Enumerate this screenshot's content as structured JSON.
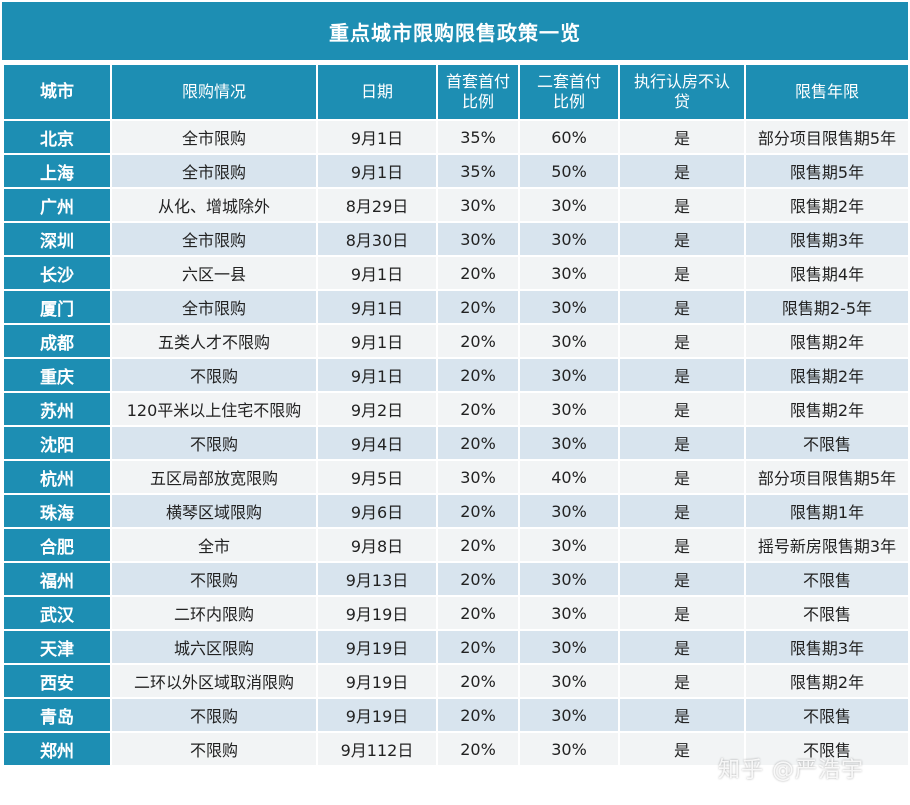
{
  "title": "重点城市限购限售政策一览",
  "headers": [
    "城市",
    "限购情况",
    "日期",
    "首套首付比例",
    "二套首付比例",
    "执行认房不认贷",
    "限售年限"
  ],
  "rows": [
    [
      "北京",
      "全市限购",
      "9月1日",
      "35%",
      "60%",
      "是",
      "部分项目限售期5年"
    ],
    [
      "上海",
      "全市限购",
      "9月1日",
      "35%",
      "50%",
      "是",
      "限售期5年"
    ],
    [
      "广州",
      "从化、增城除外",
      "8月29日",
      "30%",
      "30%",
      "是",
      "限售期2年"
    ],
    [
      "深圳",
      "全市限购",
      "8月30日",
      "30%",
      "30%",
      "是",
      "限售期3年"
    ],
    [
      "长沙",
      "六区一县",
      "9月1日",
      "20%",
      "30%",
      "是",
      "限售期4年"
    ],
    [
      "厦门",
      "全市限购",
      "9月1日",
      "20%",
      "30%",
      "是",
      "限售期2-5年"
    ],
    [
      "成都",
      "五类人才不限购",
      "9月1日",
      "20%",
      "30%",
      "是",
      "限售期2年"
    ],
    [
      "重庆",
      "不限购",
      "9月1日",
      "20%",
      "30%",
      "是",
      "限售期2年"
    ],
    [
      "苏州",
      "120平米以上住宅不限购",
      "9月2日",
      "20%",
      "30%",
      "是",
      "限售期2年"
    ],
    [
      "沈阳",
      "不限购",
      "9月4日",
      "20%",
      "30%",
      "是",
      "不限售"
    ],
    [
      "杭州",
      "五区局部放宽限购",
      "9月5日",
      "30%",
      "40%",
      "是",
      "部分项目限售期5年"
    ],
    [
      "珠海",
      "横琴区域限购",
      "9月6日",
      "20%",
      "30%",
      "是",
      "限售期1年"
    ],
    [
      "合肥",
      "全市",
      "9月8日",
      "20%",
      "30%",
      "是",
      "摇号新房限售期3年"
    ],
    [
      "福州",
      "不限购",
      "9月13日",
      "20%",
      "30%",
      "是",
      "不限售"
    ],
    [
      "武汉",
      "二环内限购",
      "9月19日",
      "20%",
      "30%",
      "是",
      "不限售"
    ],
    [
      "天津",
      "城六区限购",
      "9月19日",
      "20%",
      "30%",
      "是",
      "限售期3年"
    ],
    [
      "西安",
      "二环以外区域取消限购",
      "9月19日",
      "20%",
      "30%",
      "是",
      "限售期2年"
    ],
    [
      "青岛",
      "不限购",
      "9月19日",
      "20%",
      "30%",
      "是",
      "不限售"
    ],
    [
      "郑州",
      "不限购",
      "9月112日",
      "20%",
      "30%",
      "是",
      "不限售"
    ]
  ],
  "watermark": "知乎 @严浩宇"
}
